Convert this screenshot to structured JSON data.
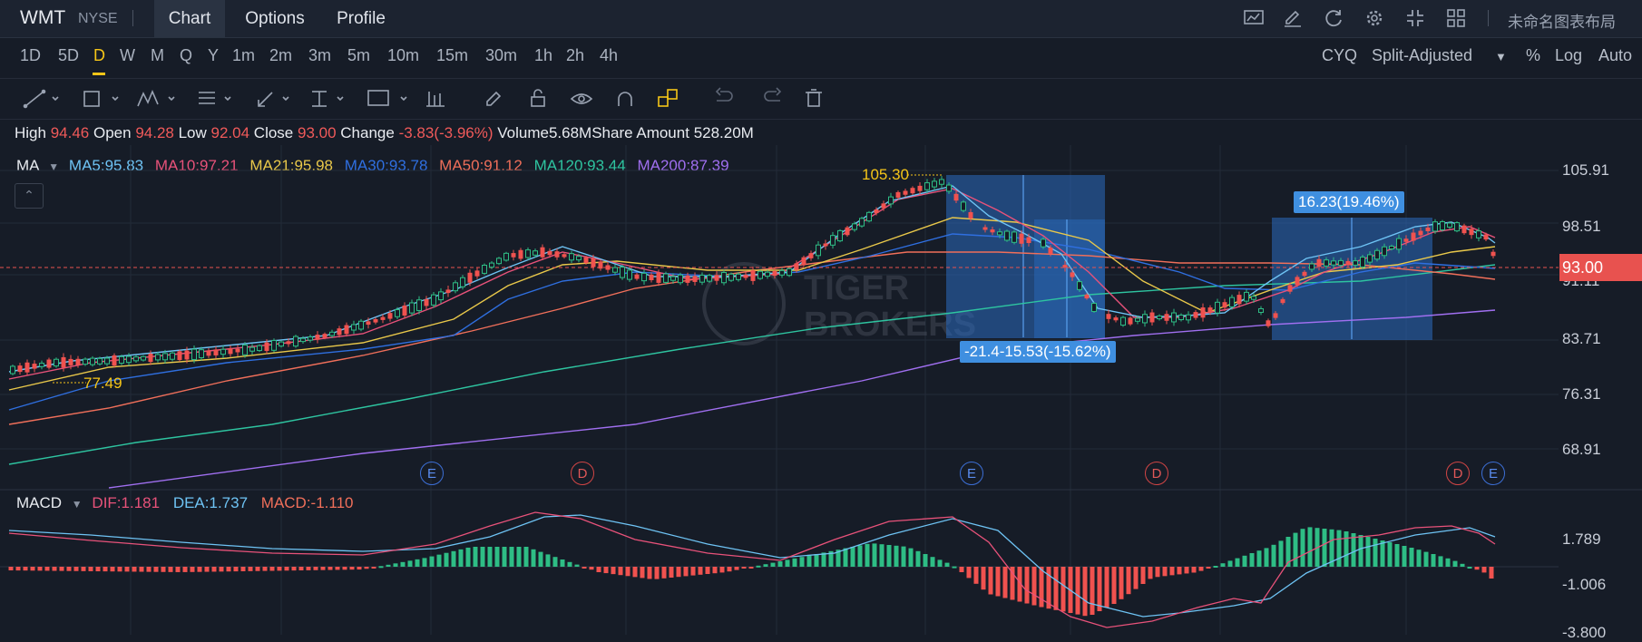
{
  "header": {
    "symbol": "WMT",
    "exchange": "NYSE",
    "tabs": [
      {
        "label": "Chart"
      },
      {
        "label": "Options"
      },
      {
        "label": "Profile"
      }
    ],
    "layout_name": "未命名图表布局"
  },
  "timeframes": [
    "1D",
    "5D",
    "D",
    "W",
    "M",
    "Q",
    "Y",
    "1m",
    "2m",
    "3m",
    "5m",
    "10m",
    "15m",
    "30m",
    "1h",
    "2h",
    "4h"
  ],
  "active_timeframe": "D",
  "right_options": {
    "cyq": "CYQ",
    "adjust": "Split-Adjusted",
    "percent": "%",
    "log": "Log",
    "auto": "Auto"
  },
  "info": {
    "high_label": "High",
    "high": "94.46",
    "open_label": "Open",
    "open": "94.28",
    "low_label": "Low",
    "low": "92.04",
    "close_label": "Close",
    "close": "93.00",
    "change_label": "Change",
    "change": "-3.83(-3.96%)",
    "volume_label": "Volume",
    "volume": "5.68M",
    "amount_label": "Share Amount",
    "amount": "528.20M"
  },
  "ma_legend": {
    "title": "MA",
    "items": [
      {
        "text": "MA5:95.83",
        "color": "#6ec3f4"
      },
      {
        "text": "MA10:97.21",
        "color": "#e8527a"
      },
      {
        "text": "MA21:95.98",
        "color": "#e9c84a"
      },
      {
        "text": "MA30:93.78",
        "color": "#2f6fe0"
      },
      {
        "text": "MA50:91.12",
        "color": "#f06f5a"
      },
      {
        "text": "MA120:93.44",
        "color": "#2ec4a0"
      },
      {
        "text": "MA200:87.39",
        "color": "#a06ff0"
      }
    ]
  },
  "macd_legend": {
    "title": "MACD",
    "items": [
      {
        "text": "DIF:1.181",
        "color": "#e8527a"
      },
      {
        "text": "DEA:1.737",
        "color": "#6ec3f4"
      },
      {
        "text": "MACD:-1.110",
        "color": "#f06f5a"
      }
    ]
  },
  "price_axis": [
    "105.91",
    "98.51",
    "91.11",
    "83.71",
    "76.31",
    "68.91"
  ],
  "current_price": "93.00",
  "macd_axis": [
    "1.789",
    "-1.006",
    "-3.800"
  ],
  "annotations": {
    "high_marker": "105.30",
    "low_marker": "77.49",
    "measure_down_a": "-21.4",
    "measure_down_b": "-15.53(-15.62%)",
    "measure_up": "16.23(19.46%)"
  },
  "events": [
    "E",
    "D",
    "E",
    "D",
    "D",
    "E"
  ],
  "watermark": {
    "line1": "TIGER",
    "line2": "BROKERS"
  },
  "colors": {
    "up": "#2ebd85",
    "down": "#f0524f",
    "accent": "#f5c518",
    "measure": "#3f8fe0"
  }
}
